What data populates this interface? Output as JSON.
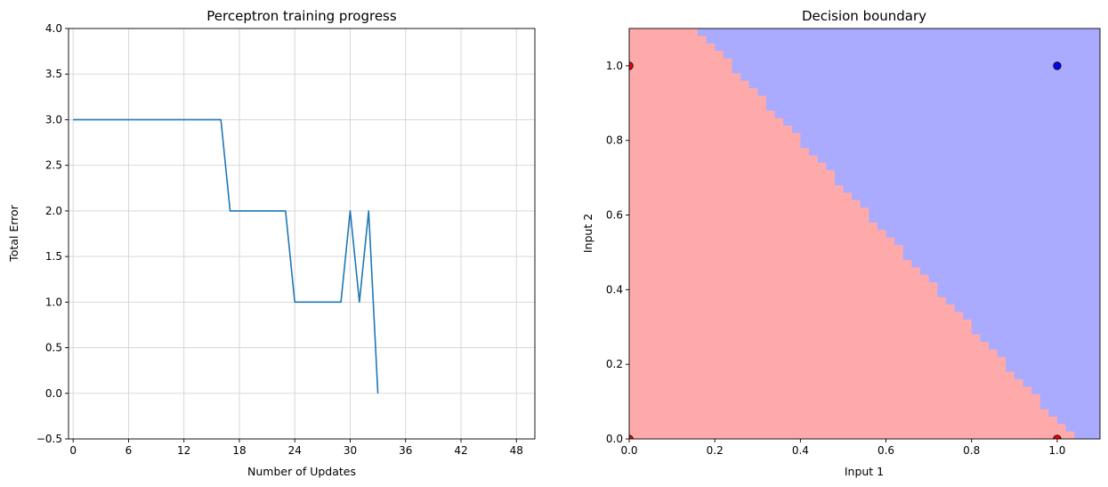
{
  "chart_data": [
    {
      "type": "line",
      "title": "Perceptron training progress",
      "xlabel": "Number of Updates",
      "ylabel": "Total Error",
      "xlim": [
        -0.5,
        50
      ],
      "ylim": [
        -0.5,
        4.0
      ],
      "xticks": [
        0,
        6,
        12,
        18,
        24,
        30,
        36,
        42,
        48
      ],
      "yticks": [
        -0.5,
        0.0,
        0.5,
        1.0,
        1.5,
        2.0,
        2.5,
        3.0,
        3.5,
        4.0
      ],
      "xtick_labels": [
        "0",
        "6",
        "12",
        "18",
        "24",
        "30",
        "36",
        "42",
        "48"
      ],
      "ytick_labels": [
        "−0.5",
        "0.0",
        "0.5",
        "1.0",
        "1.5",
        "2.0",
        "2.5",
        "3.0",
        "3.5",
        "4.0"
      ],
      "grid": true,
      "line_color": "#1f77b4",
      "series": [
        {
          "x": [
            0,
            16,
            17,
            23,
            24,
            29,
            30,
            31,
            32,
            33
          ],
          "y": [
            3,
            3,
            2,
            2,
            1,
            1,
            2,
            1,
            2,
            0
          ]
        }
      ]
    },
    {
      "type": "scatter",
      "title": "Decision boundary",
      "xlabel": "Input 1",
      "ylabel": "Input 2",
      "xlim": [
        0,
        1.1
      ],
      "ylim": [
        0,
        1.1
      ],
      "xticks": [
        0.0,
        0.2,
        0.4,
        0.6,
        0.8,
        1.0
      ],
      "yticks": [
        0.0,
        0.2,
        0.4,
        0.6,
        0.8,
        1.0
      ],
      "xtick_labels": [
        "0.0",
        "0.2",
        "0.4",
        "0.6",
        "0.8",
        "1.0"
      ],
      "ytick_labels": [
        "0.0",
        "0.2",
        "0.4",
        "0.6",
        "0.8",
        "1.0"
      ],
      "grid": false,
      "regions": {
        "class_0_color": "#ffaaaa",
        "class_1_color": "#aaaaff",
        "boundary": {
          "weights": [
            1.0,
            0.8
          ],
          "threshold": 1.03
        }
      },
      "points": [
        {
          "x": 0,
          "y": 0,
          "class": 0,
          "color": "#ff0000"
        },
        {
          "x": 0,
          "y": 1,
          "class": 0,
          "color": "#ff0000"
        },
        {
          "x": 1,
          "y": 0,
          "class": 0,
          "color": "#ff0000"
        },
        {
          "x": 1,
          "y": 1,
          "class": 1,
          "color": "#0000ff"
        }
      ]
    }
  ]
}
